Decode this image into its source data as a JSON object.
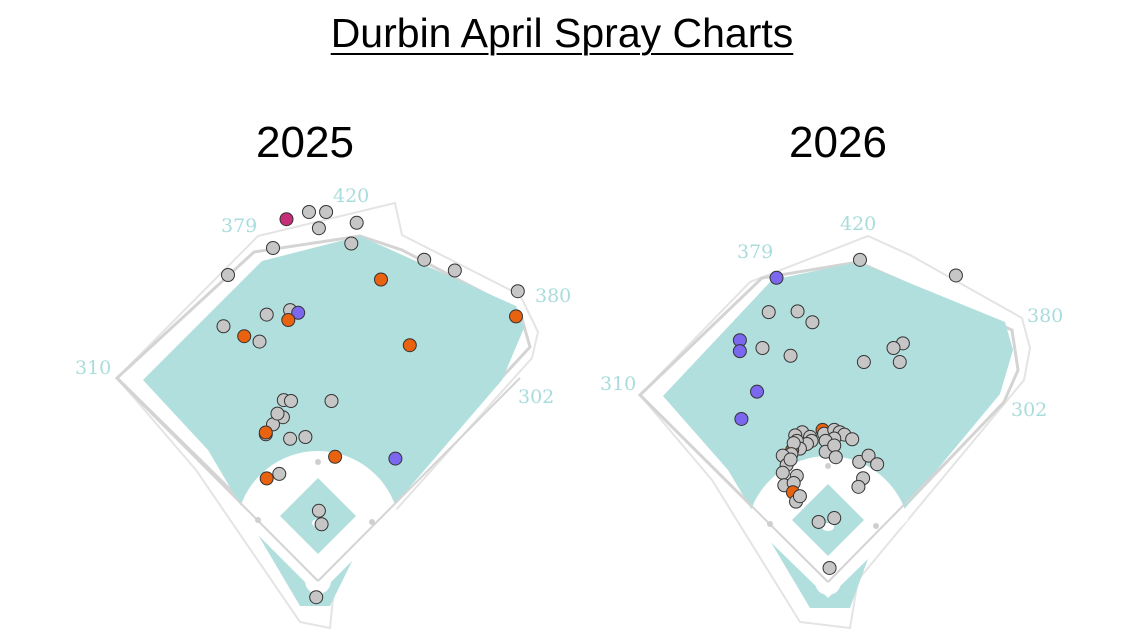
{
  "title": "Durbin April Spray Charts",
  "colors": {
    "grass": "#b1dfdd",
    "wall": "#d8d8d8",
    "out": "#c6c6c6",
    "single": "#e8620f",
    "double": "#7b68ee",
    "home_run": "#c62e77"
  },
  "chart_data": [
    {
      "type": "scatter",
      "title": "2025",
      "fence_labels": [
        "420",
        "379",
        "380",
        "310",
        "302"
      ],
      "points": [
        {
          "x": -35,
          "y": 402,
          "kind": "home_run"
        },
        {
          "x": -10,
          "y": 410,
          "kind": "out"
        },
        {
          "x": 9,
          "y": 410,
          "kind": "out"
        },
        {
          "x": 1,
          "y": 392,
          "kind": "out"
        },
        {
          "x": 43,
          "y": 398,
          "kind": "out"
        },
        {
          "x": 37,
          "y": 375,
          "kind": "out"
        },
        {
          "x": -50,
          "y": 370,
          "kind": "out"
        },
        {
          "x": -100,
          "y": 340,
          "kind": "out"
        },
        {
          "x": -31,
          "y": 301,
          "kind": "out"
        },
        {
          "x": -22,
          "y": 298,
          "kind": "double"
        },
        {
          "x": -33,
          "y": 290,
          "kind": "single"
        },
        {
          "x": 118,
          "y": 357,
          "kind": "out"
        },
        {
          "x": 70,
          "y": 335,
          "kind": "single"
        },
        {
          "x": 152,
          "y": 345,
          "kind": "out"
        },
        {
          "x": 222,
          "y": 322,
          "kind": "out"
        },
        {
          "x": 220,
          "y": 294,
          "kind": "single"
        },
        {
          "x": -105,
          "y": 283,
          "kind": "out"
        },
        {
          "x": -57,
          "y": 296,
          "kind": "out"
        },
        {
          "x": -82,
          "y": 272,
          "kind": "single"
        },
        {
          "x": -65,
          "y": 266,
          "kind": "out"
        },
        {
          "x": 102,
          "y": 262,
          "kind": "single"
        },
        {
          "x": -38,
          "y": 201,
          "kind": "out"
        },
        {
          "x": -30,
          "y": 200,
          "kind": "out"
        },
        {
          "x": -39,
          "y": 182,
          "kind": "out"
        },
        {
          "x": -50,
          "y": 174,
          "kind": "out"
        },
        {
          "x": -45,
          "y": 186,
          "kind": "out"
        },
        {
          "x": -58,
          "y": 163,
          "kind": "out"
        },
        {
          "x": 15,
          "y": 200,
          "kind": "out"
        },
        {
          "x": -31,
          "y": 158,
          "kind": "out"
        },
        {
          "x": -14,
          "y": 160,
          "kind": "out"
        },
        {
          "x": -58,
          "y": 165,
          "kind": "single"
        },
        {
          "x": 19,
          "y": 138,
          "kind": "single"
        },
        {
          "x": -43,
          "y": 119,
          "kind": "out"
        },
        {
          "x": -57,
          "y": 114,
          "kind": "single"
        },
        {
          "x": 86,
          "y": 136,
          "kind": "double"
        },
        {
          "x": 1,
          "y": 78,
          "kind": "out"
        },
        {
          "x": 4,
          "y": 63,
          "kind": "out"
        },
        {
          "x": -2,
          "y": -18,
          "kind": "out"
        }
      ]
    },
    {
      "type": "scatter",
      "title": "2026",
      "fence_labels": [
        "420",
        "379",
        "380",
        "310",
        "302"
      ],
      "points": [
        {
          "x": -66,
          "y": 390,
          "kind": "double"
        },
        {
          "x": -76,
          "y": 346,
          "kind": "out"
        },
        {
          "x": 41,
          "y": 413,
          "kind": "out"
        },
        {
          "x": -39,
          "y": 347,
          "kind": "out"
        },
        {
          "x": -20,
          "y": 333,
          "kind": "out"
        },
        {
          "x": -113,
          "y": 310,
          "kind": "double"
        },
        {
          "x": -113,
          "y": 296,
          "kind": "double"
        },
        {
          "x": -84,
          "y": 300,
          "kind": "out"
        },
        {
          "x": -91,
          "y": 244,
          "kind": "double"
        },
        {
          "x": -111,
          "y": 209,
          "kind": "double"
        },
        {
          "x": 164,
          "y": 393,
          "kind": "out"
        },
        {
          "x": 96,
          "y": 306,
          "kind": "out"
        },
        {
          "x": 84,
          "y": 300,
          "kind": "out"
        },
        {
          "x": 92,
          "y": 282,
          "kind": "out"
        },
        {
          "x": -48,
          "y": 290,
          "kind": "out"
        },
        {
          "x": 46,
          "y": 282,
          "kind": "out"
        },
        {
          "x": -7,
          "y": 195,
          "kind": "single"
        },
        {
          "x": -5,
          "y": 190,
          "kind": "out"
        },
        {
          "x": -33,
          "y": 192,
          "kind": "out"
        },
        {
          "x": 8,
          "y": 195,
          "kind": "out"
        },
        {
          "x": 15,
          "y": 192,
          "kind": "out"
        },
        {
          "x": 21,
          "y": 189,
          "kind": "out"
        },
        {
          "x": 31,
          "y": 183,
          "kind": "out"
        },
        {
          "x": 8,
          "y": 184,
          "kind": "out"
        },
        {
          "x": -3,
          "y": 181,
          "kind": "out"
        },
        {
          "x": -42,
          "y": 188,
          "kind": "out"
        },
        {
          "x": -23,
          "y": 186,
          "kind": "out"
        },
        {
          "x": -21,
          "y": 181,
          "kind": "out"
        },
        {
          "x": -27,
          "y": 177,
          "kind": "out"
        },
        {
          "x": -40,
          "y": 181,
          "kind": "out"
        },
        {
          "x": -36,
          "y": 171,
          "kind": "out"
        },
        {
          "x": -46,
          "y": 169,
          "kind": "single"
        },
        {
          "x": -44,
          "y": 178,
          "kind": "out"
        },
        {
          "x": -47,
          "y": 164,
          "kind": "out"
        },
        {
          "x": -58,
          "y": 162,
          "kind": "out"
        },
        {
          "x": -53,
          "y": 150,
          "kind": "out"
        },
        {
          "x": -48,
          "y": 157,
          "kind": "out"
        },
        {
          "x": -58,
          "y": 140,
          "kind": "out"
        },
        {
          "x": -56,
          "y": 124,
          "kind": "out"
        },
        {
          "x": -40,
          "y": 136,
          "kind": "out"
        },
        {
          "x": -44,
          "y": 127,
          "kind": "out"
        },
        {
          "x": -45,
          "y": 115,
          "kind": "single"
        },
        {
          "x": -41,
          "y": 103,
          "kind": "out"
        },
        {
          "x": -36,
          "y": 110,
          "kind": "out"
        },
        {
          "x": -3,
          "y": 167,
          "kind": "out"
        },
        {
          "x": 8,
          "y": 175,
          "kind": "out"
        },
        {
          "x": 40,
          "y": 154,
          "kind": "out"
        },
        {
          "x": 52,
          "y": 162,
          "kind": "out"
        },
        {
          "x": 45,
          "y": 133,
          "kind": "out"
        },
        {
          "x": 39,
          "y": 122,
          "kind": "out"
        },
        {
          "x": 63,
          "y": 151,
          "kind": "out"
        },
        {
          "x": 10,
          "y": 160,
          "kind": "out"
        },
        {
          "x": 8,
          "y": 82,
          "kind": "out"
        },
        {
          "x": -12,
          "y": 77,
          "kind": "out"
        },
        {
          "x": 2,
          "y": 18,
          "kind": "out"
        }
      ]
    }
  ]
}
